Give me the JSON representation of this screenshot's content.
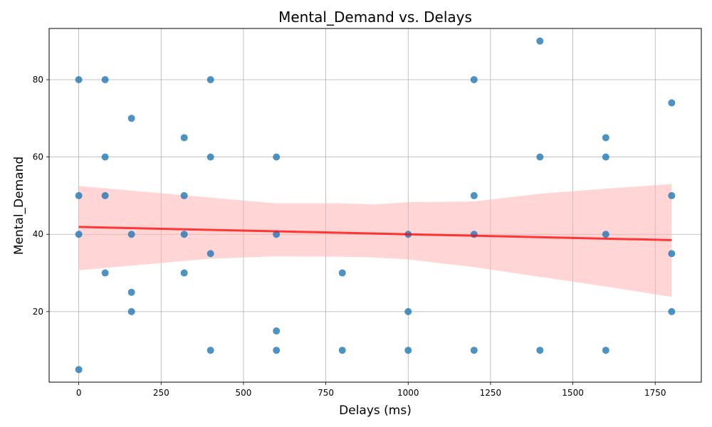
{
  "chart_data": {
    "type": "scatter",
    "title": "Mental_Demand vs. Delays",
    "xlabel": "Delays (ms)",
    "ylabel": "Mental_Demand",
    "xlim": [
      -90,
      1890
    ],
    "ylim": [
      1.75,
      93.25
    ],
    "x_ticks": [
      0,
      250,
      500,
      750,
      1000,
      1250,
      1500,
      1750
    ],
    "y_ticks": [
      20,
      40,
      60,
      80
    ],
    "grid": true,
    "point_color": "#1f77b4",
    "fit_color": "#ff0000",
    "band_color": "#ffb3b3",
    "points": [
      {
        "x": 0,
        "y": 80
      },
      {
        "x": 0,
        "y": 50
      },
      {
        "x": 0,
        "y": 40
      },
      {
        "x": 0,
        "y": 5
      },
      {
        "x": 80,
        "y": 80
      },
      {
        "x": 80,
        "y": 60
      },
      {
        "x": 80,
        "y": 50
      },
      {
        "x": 80,
        "y": 30
      },
      {
        "x": 160,
        "y": 70
      },
      {
        "x": 160,
        "y": 40
      },
      {
        "x": 160,
        "y": 25
      },
      {
        "x": 160,
        "y": 20
      },
      {
        "x": 320,
        "y": 65
      },
      {
        "x": 320,
        "y": 50
      },
      {
        "x": 320,
        "y": 40
      },
      {
        "x": 320,
        "y": 30
      },
      {
        "x": 400,
        "y": 80
      },
      {
        "x": 400,
        "y": 60
      },
      {
        "x": 400,
        "y": 35
      },
      {
        "x": 400,
        "y": 10
      },
      {
        "x": 600,
        "y": 60
      },
      {
        "x": 600,
        "y": 40
      },
      {
        "x": 600,
        "y": 15
      },
      {
        "x": 600,
        "y": 10
      },
      {
        "x": 800,
        "y": 30
      },
      {
        "x": 800,
        "y": 10
      },
      {
        "x": 1000,
        "y": 40
      },
      {
        "x": 1000,
        "y": 20
      },
      {
        "x": 1000,
        "y": 10
      },
      {
        "x": 1200,
        "y": 80
      },
      {
        "x": 1200,
        "y": 50
      },
      {
        "x": 1200,
        "y": 40
      },
      {
        "x": 1200,
        "y": 10
      },
      {
        "x": 1400,
        "y": 90
      },
      {
        "x": 1400,
        "y": 60
      },
      {
        "x": 1400,
        "y": 10
      },
      {
        "x": 1600,
        "y": 65
      },
      {
        "x": 1600,
        "y": 60
      },
      {
        "x": 1600,
        "y": 40
      },
      {
        "x": 1600,
        "y": 10
      },
      {
        "x": 1800,
        "y": 74
      },
      {
        "x": 1800,
        "y": 50
      },
      {
        "x": 1800,
        "y": 35
      },
      {
        "x": 1800,
        "y": 20
      }
    ],
    "regression": {
      "x": [
        0,
        1800
      ],
      "y": [
        41.9,
        38.5
      ]
    },
    "confidence_band": {
      "x": [
        0,
        200,
        400,
        600,
        800,
        900,
        1000,
        1200,
        1400,
        1600,
        1800
      ],
      "upper": [
        52.5,
        51.0,
        49.5,
        48.0,
        48.0,
        47.7,
        48.3,
        48.5,
        50.5,
        51.8,
        53.0
      ],
      "lower": [
        30.7,
        32.2,
        33.7,
        34.3,
        34.2,
        34.0,
        33.5,
        31.5,
        29.0,
        26.5,
        23.8
      ]
    }
  }
}
